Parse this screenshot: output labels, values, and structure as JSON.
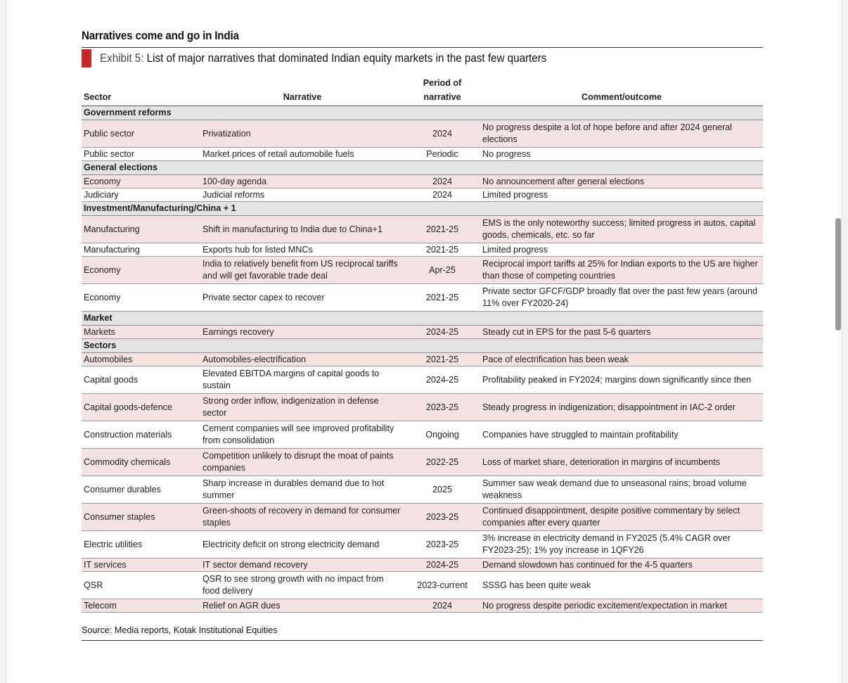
{
  "heading": "Narratives come and go in India",
  "exhibit": {
    "label": "Exhibit 5:",
    "title": "List of major narratives that dominated Indian equity markets in the past few quarters"
  },
  "columns": {
    "sector": "Sector",
    "narrative": "Narrative",
    "period_line1": "Period of",
    "period_line2": "narrative",
    "comment": "Comment/outcome"
  },
  "rows": [
    {
      "group": "Government reforms"
    },
    {
      "sector": "Public sector",
      "narrative": "Privatization",
      "period": "2024",
      "comment": "No progress despite a lot of hope before and after 2024 general elections",
      "tall": true
    },
    {
      "sector": "Public sector",
      "narrative": "Market prices of retail automobile fuels",
      "period": "Periodic",
      "comment": "No progress"
    },
    {
      "group": "General elections"
    },
    {
      "sector": "Economy",
      "narrative": "100-day agenda",
      "period": "2024",
      "comment": "No announcement after general elections"
    },
    {
      "sector": "Judiciary",
      "narrative": "Judicial reforms",
      "period": "2024",
      "comment": "Limited progress"
    },
    {
      "group": "Investment/Manufacturing/China + 1"
    },
    {
      "sector": "Manufacturing",
      "narrative": "Shift in manufacturing to India due to China+1",
      "period": "2021-25",
      "comment": "EMS is the only noteworthy success; limited progress in autos, capital goods, chemicals, etc. so far",
      "tall": true
    },
    {
      "sector": "Manufacturing",
      "narrative": "Exports hub for listed MNCs",
      "period": "2021-25",
      "comment": "Limited progress"
    },
    {
      "sector": "Economy",
      "narrative": "India to relatively benefit from US reciprocal tariffs and will get favorable trade deal",
      "period": "Apr-25",
      "comment": "Reciprocal import tariffs at 25% for Indian exports to the US are higher than those of competing countries",
      "tall": true
    },
    {
      "sector": "Economy",
      "narrative": "Private sector capex to recover",
      "period": "2021-25",
      "comment": "Private sector GFCF/GDP broadly flat over the past few years (around 11% over FY2020-24)",
      "tall": true
    },
    {
      "group": "Market"
    },
    {
      "sector": "Markets",
      "narrative": "Earnings recovery",
      "period": "2024-25",
      "comment": "Steady cut in EPS for the past 5-6 quarters"
    },
    {
      "group": "Sectors"
    },
    {
      "sector": "Automobiles",
      "narrative": "Automobiles-electrification",
      "period": "2021-25",
      "comment": "Pace of electrification has been weak"
    },
    {
      "sector": "Capital goods",
      "narrative": "Elevated EBITDA margins of capital goods to sustain",
      "period": "2024-25",
      "comment": "Profitability peaked in FY2024; margins down significantly since then",
      "tall": true
    },
    {
      "sector": "Capital goods-defence",
      "narrative": "Strong order inflow, indigenization in defense sector",
      "period": "2023-25",
      "comment": "Steady progress in indigenization; disappointment in IAC-2 order",
      "tall": true
    },
    {
      "sector": "Construction materials",
      "narrative": "Cement companies will see improved profitability from consolidation",
      "period": "Ongoing",
      "comment": "Companies have struggled to maintain profitability",
      "tall": true
    },
    {
      "sector": "Commodity chemicals",
      "narrative": "Competition unlikely to disrupt the moat of paints companies",
      "period": "2022-25",
      "comment": "Loss of market share, deterioration in margins of incumbents",
      "tall": true
    },
    {
      "sector": "Consumer durables",
      "narrative": "Sharp increase in durables demand due to hot summer",
      "period": "2025",
      "comment": "Summer saw weak demand due to unseasonal rains; broad volume weakness",
      "tall": true
    },
    {
      "sector": "Consumer staples",
      "narrative": "Green-shoots of recovery in demand for consumer staples",
      "period": "2023-25",
      "comment": "Continued disappointment, despite positive commentary by select companies after every quarter",
      "tall": true
    },
    {
      "sector": "Electric utilities",
      "narrative": "Electricity deficit on strong electricity demand",
      "period": "2023-25",
      "comment": "3% increase in electricity demand in FY2025 (5.4% CAGR over FY2023-25); 1% yoy increase in 1QFY26",
      "tall": true
    },
    {
      "sector": "IT services",
      "narrative": "IT sector demand recovery",
      "period": "2024-25",
      "comment": "Demand slowdown has continued for the 4-5 quarters"
    },
    {
      "sector": "QSR",
      "narrative": "QSR to see strong growth with no impact from food delivery",
      "period": "2023-current",
      "comment": "SSSG has been quite weak",
      "tall": true
    },
    {
      "sector": "Telecom",
      "narrative": "Relief on AGR dues",
      "period": "2024",
      "comment": "No progress despite periodic excitement/expectation in market"
    }
  ],
  "source": "Source: Media reports, Kotak Institutional Equities",
  "colors": {
    "accent": "#c62828",
    "group_band": "#e3e3e3",
    "row_pink": "#f5e3e3",
    "page_bg": "#f1f1f1"
  }
}
